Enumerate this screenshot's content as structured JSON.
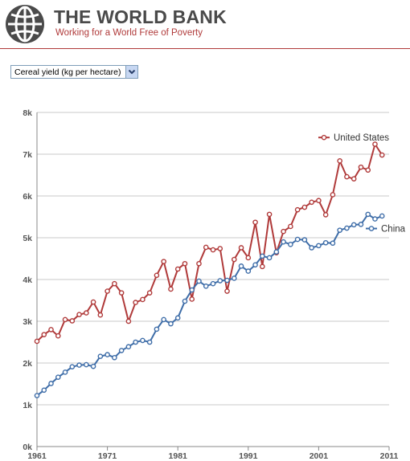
{
  "header": {
    "title": "THE WORLD BANK",
    "tagline": "Working for a World Free of Poverty",
    "logo_icon": "world-bank-globe-icon",
    "accent_color": "#b03a3a"
  },
  "indicator_select": {
    "selected": "Cereal yield (kg per hectare)",
    "arrow_icon": "chevron-down-icon"
  },
  "chart_data": {
    "type": "line",
    "title": "",
    "xlabel": "",
    "ylabel": "",
    "xlim": [
      1961,
      2011
    ],
    "ylim": [
      0,
      8000
    ],
    "x_ticks": [
      1961,
      1971,
      1981,
      1991,
      2001,
      2011
    ],
    "x_tick_labels": [
      "1961",
      "1971",
      "1981",
      "1991",
      "2001",
      "2011"
    ],
    "y_ticks": [
      0,
      1000,
      2000,
      3000,
      4000,
      5000,
      6000,
      7000,
      8000
    ],
    "y_tick_labels": [
      "0k",
      "1k",
      "2k",
      "3k",
      "4k",
      "5k",
      "6k",
      "7k",
      "8k"
    ],
    "grid": "horizontal",
    "legend": "inline-labels",
    "x": [
      1961,
      1962,
      1963,
      1964,
      1965,
      1966,
      1967,
      1968,
      1969,
      1970,
      1971,
      1972,
      1973,
      1974,
      1975,
      1976,
      1977,
      1978,
      1979,
      1980,
      1981,
      1982,
      1983,
      1984,
      1985,
      1986,
      1987,
      1988,
      1989,
      1990,
      1991,
      1992,
      1993,
      1994,
      1995,
      1996,
      1997,
      1998,
      1999,
      2000,
      2001,
      2002,
      2003,
      2004,
      2005,
      2006,
      2007,
      2008,
      2009,
      2010
    ],
    "series": [
      {
        "name": "United States",
        "color": "#b03a3a",
        "values": [
          2520,
          2680,
          2800,
          2650,
          3040,
          3010,
          3160,
          3200,
          3460,
          3150,
          3720,
          3900,
          3680,
          3000,
          3450,
          3520,
          3680,
          4100,
          4430,
          3770,
          4250,
          4380,
          3530,
          4380,
          4770,
          4710,
          4740,
          3720,
          4480,
          4760,
          4520,
          5370,
          4310,
          5560,
          4640,
          5150,
          5270,
          5670,
          5730,
          5850,
          5890,
          5550,
          6030,
          6840,
          6460,
          6410,
          6690,
          6620,
          7240,
          6980
        ]
      },
      {
        "name": "China",
        "color": "#3e6da8",
        "values": [
          1220,
          1350,
          1510,
          1660,
          1780,
          1910,
          1950,
          1960,
          1920,
          2160,
          2200,
          2130,
          2300,
          2390,
          2500,
          2540,
          2500,
          2810,
          3040,
          2940,
          3080,
          3480,
          3750,
          3960,
          3840,
          3900,
          3970,
          3980,
          4030,
          4320,
          4200,
          4350,
          4560,
          4520,
          4660,
          4900,
          4840,
          4960,
          4950,
          4760,
          4810,
          4880,
          4870,
          5180,
          5230,
          5310,
          5320,
          5560,
          5450,
          5520
        ]
      }
    ]
  }
}
